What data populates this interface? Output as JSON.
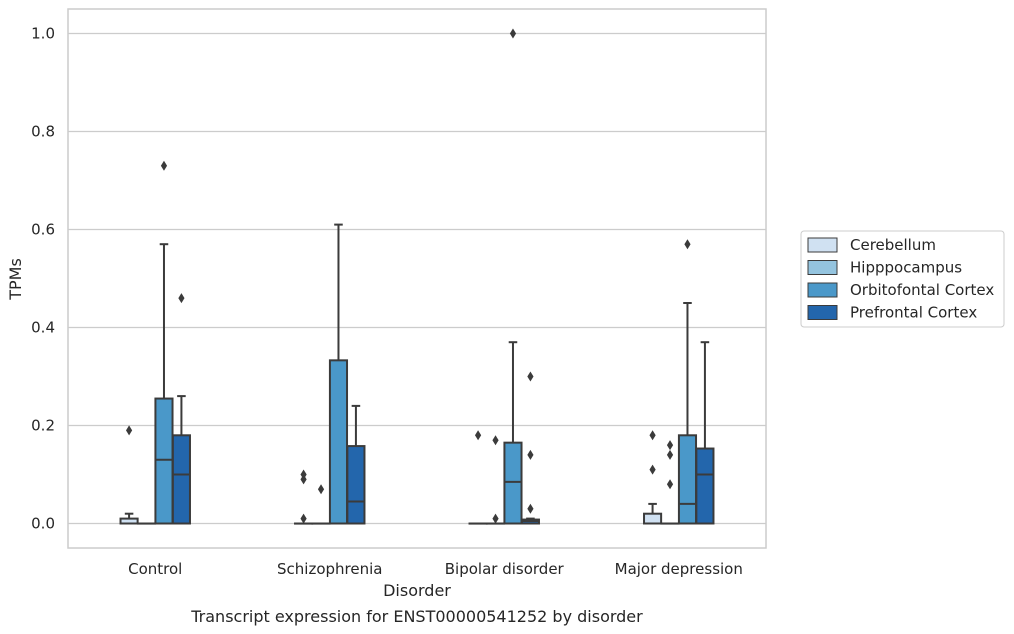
{
  "chart_data": {
    "type": "box",
    "title": "Transcript expression for ENST00000541252 by disorder",
    "xlabel": "Disorder",
    "ylabel": "TPMs",
    "ylim": [
      -0.05,
      1.05
    ],
    "yticks": [
      "0.0",
      "0.2",
      "0.4",
      "0.6",
      "0.8",
      "1.0"
    ],
    "grid": true,
    "legend_position": "right",
    "categories": [
      "Control",
      "Schizophrenia",
      "Bipolar disorder",
      "Major depression"
    ],
    "series": [
      {
        "name": "Cerebellum",
        "color": "#d0e1f2",
        "boxes": [
          {
            "q1": 0.0,
            "median": 0.0,
            "q3": 0.01,
            "whislo": 0.0,
            "whishi": 0.02,
            "fliers": [
              0.19
            ]
          },
          {
            "q1": 0.0,
            "median": 0.0,
            "q3": 0.0,
            "whislo": 0.0,
            "whishi": 0.0,
            "fliers": [
              0.01,
              0.09,
              0.1
            ]
          },
          {
            "q1": 0.0,
            "median": 0.0,
            "q3": 0.0,
            "whislo": 0.0,
            "whishi": 0.0,
            "fliers": [
              0.18
            ]
          },
          {
            "q1": 0.0,
            "median": 0.0,
            "q3": 0.02,
            "whislo": 0.0,
            "whishi": 0.04,
            "fliers": [
              0.11,
              0.18
            ]
          }
        ]
      },
      {
        "name": "Hipppocampus",
        "color": "#94c4df",
        "boxes": [
          {
            "q1": 0.0,
            "median": 0.0,
            "q3": 0.0,
            "whislo": 0.0,
            "whishi": 0.0,
            "fliers": []
          },
          {
            "q1": 0.0,
            "median": 0.0,
            "q3": 0.0,
            "whislo": 0.0,
            "whishi": 0.0,
            "fliers": [
              0.07
            ]
          },
          {
            "q1": 0.0,
            "median": 0.0,
            "q3": 0.0,
            "whislo": 0.0,
            "whishi": 0.0,
            "fliers": [
              0.01,
              0.17
            ]
          },
          {
            "q1": 0.0,
            "median": 0.0,
            "q3": 0.0,
            "whislo": 0.0,
            "whishi": 0.0,
            "fliers": [
              0.08,
              0.14,
              0.16
            ]
          }
        ]
      },
      {
        "name": "Orbitofontal Cortex",
        "color": "#4a98c9",
        "boxes": [
          {
            "q1": 0.0,
            "median": 0.13,
            "q3": 0.255,
            "whislo": 0.0,
            "whishi": 0.57,
            "fliers": [
              0.73
            ]
          },
          {
            "q1": 0.0,
            "median": 0.0,
            "q3": 0.333,
            "whislo": 0.0,
            "whishi": 0.61,
            "fliers": []
          },
          {
            "q1": 0.0,
            "median": 0.085,
            "q3": 0.165,
            "whislo": 0.0,
            "whishi": 0.37,
            "fliers": [
              1.0
            ]
          },
          {
            "q1": 0.0,
            "median": 0.04,
            "q3": 0.18,
            "whislo": 0.0,
            "whishi": 0.45,
            "fliers": [
              0.57
            ]
          }
        ]
      },
      {
        "name": "Prefrontal Cortex",
        "color": "#2366ac",
        "boxes": [
          {
            "q1": 0.0,
            "median": 0.1,
            "q3": 0.18,
            "whislo": 0.0,
            "whishi": 0.26,
            "fliers": [
              0.46
            ]
          },
          {
            "q1": 0.0,
            "median": 0.045,
            "q3": 0.158,
            "whislo": 0.0,
            "whishi": 0.24,
            "fliers": []
          },
          {
            "q1": 0.0,
            "median": 0.005,
            "q3": 0.008,
            "whislo": 0.0,
            "whishi": 0.01,
            "fliers": [
              0.03,
              0.14,
              0.3
            ]
          },
          {
            "q1": 0.0,
            "median": 0.1,
            "q3": 0.153,
            "whislo": 0.0,
            "whishi": 0.37,
            "fliers": []
          }
        ]
      }
    ]
  }
}
